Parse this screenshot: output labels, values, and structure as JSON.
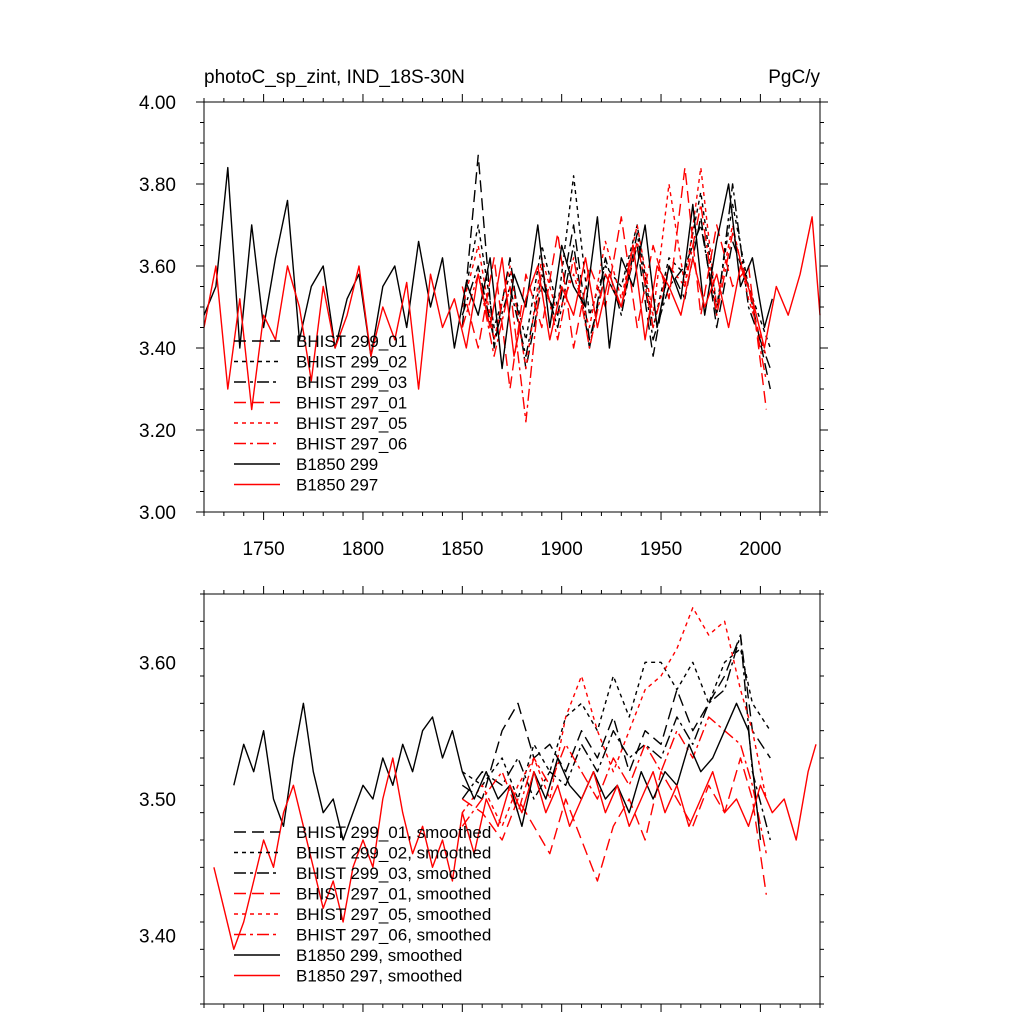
{
  "chart_data": [
    {
      "type": "line",
      "title": "photoC_sp_zint, IND_18S-30N",
      "units": "PgC/y",
      "xlim": [
        1720,
        2030
      ],
      "ylim": [
        3.0,
        4.0
      ],
      "xticks": [
        1750,
        1800,
        1850,
        1900,
        1950,
        2000
      ],
      "yticks": [
        3.0,
        3.2,
        3.4,
        3.6,
        3.8,
        4.0
      ],
      "ytick_labels": [
        "3.00",
        "3.20",
        "3.40",
        "3.60",
        "3.80",
        "4.00"
      ],
      "legend_position": "lower-left",
      "grid": false,
      "series": [
        {
          "name": "BHIST 299_01",
          "color": "#000000",
          "dash": "12,6",
          "x": [
            1850,
            1858,
            1866,
            1874,
            1882,
            1890,
            1898,
            1906,
            1914,
            1922,
            1930,
            1938,
            1946,
            1954,
            1962,
            1970,
            1978,
            1986,
            1994,
            2005
          ],
          "values": [
            3.45,
            3.87,
            3.4,
            3.62,
            3.35,
            3.55,
            3.48,
            3.7,
            3.42,
            3.58,
            3.5,
            3.65,
            3.38,
            3.6,
            3.52,
            3.72,
            3.45,
            3.66,
            3.55,
            3.3
          ]
        },
        {
          "name": "BHIST 299_02",
          "color": "#000000",
          "dash": "4,4",
          "x": [
            1850,
            1858,
            1866,
            1874,
            1882,
            1890,
            1898,
            1906,
            1914,
            1922,
            1930,
            1938,
            1946,
            1954,
            1962,
            1970,
            1978,
            1986,
            1994,
            2005
          ],
          "values": [
            3.5,
            3.7,
            3.45,
            3.58,
            3.42,
            3.65,
            3.5,
            3.82,
            3.48,
            3.6,
            3.55,
            3.7,
            3.45,
            3.62,
            3.58,
            3.78,
            3.5,
            3.75,
            3.55,
            3.4
          ]
        },
        {
          "name": "BHIST 299_03",
          "color": "#000000",
          "dash": "12,4,3,4",
          "x": [
            1850,
            1858,
            1866,
            1874,
            1882,
            1890,
            1898,
            1906,
            1914,
            1922,
            1930,
            1938,
            1946,
            1954,
            1962,
            1970,
            1978,
            1986,
            1994,
            2005
          ],
          "values": [
            3.48,
            3.6,
            3.42,
            3.55,
            3.38,
            3.58,
            3.45,
            3.65,
            3.4,
            3.62,
            3.48,
            3.68,
            3.42,
            3.55,
            3.6,
            3.7,
            3.48,
            3.8,
            3.5,
            3.35
          ]
        },
        {
          "name": "BHIST 297_01",
          "color": "#ff0000",
          "dash": "12,6",
          "x": [
            1850,
            1858,
            1866,
            1874,
            1882,
            1890,
            1898,
            1906,
            1914,
            1922,
            1930,
            1938,
            1946,
            1954,
            1962,
            1970,
            1978,
            1986,
            1994,
            2003
          ],
          "values": [
            3.55,
            3.4,
            3.62,
            3.3,
            3.58,
            3.45,
            3.68,
            3.4,
            3.6,
            3.5,
            3.72,
            3.45,
            3.65,
            3.52,
            3.84,
            3.48,
            3.7,
            3.55,
            3.6,
            3.25
          ]
        },
        {
          "name": "BHIST 297_05",
          "color": "#ff0000",
          "dash": "4,4",
          "x": [
            1850,
            1858,
            1866,
            1874,
            1882,
            1890,
            1898,
            1906,
            1914,
            1922,
            1930,
            1938,
            1946,
            1954,
            1962,
            1970,
            1978,
            1986,
            1994,
            2003
          ],
          "values": [
            3.5,
            3.65,
            3.42,
            3.6,
            3.35,
            3.62,
            3.48,
            3.58,
            3.45,
            3.66,
            3.52,
            3.7,
            3.48,
            3.8,
            3.55,
            3.84,
            3.5,
            3.7,
            3.52,
            3.38
          ]
        },
        {
          "name": "BHIST 297_06",
          "color": "#ff0000",
          "dash": "12,4,3,4",
          "x": [
            1850,
            1858,
            1866,
            1874,
            1882,
            1890,
            1898,
            1906,
            1914,
            1922,
            1930,
            1938,
            1946,
            1954,
            1962,
            1970,
            1978,
            1986,
            1994,
            2003
          ],
          "values": [
            3.45,
            3.58,
            3.38,
            3.55,
            3.22,
            3.6,
            3.42,
            3.62,
            3.4,
            3.58,
            3.5,
            3.66,
            3.45,
            3.6,
            3.55,
            3.75,
            3.48,
            3.68,
            3.55,
            3.32
          ]
        },
        {
          "name": "B1850 299",
          "color": "#000000",
          "dash": "",
          "x": [
            1720,
            1726,
            1732,
            1738,
            1744,
            1750,
            1756,
            1762,
            1768,
            1774,
            1780,
            1786,
            1792,
            1798,
            1804,
            1810,
            1816,
            1822,
            1828,
            1834,
            1840,
            1846,
            1852,
            1858,
            1864,
            1870,
            1876,
            1882,
            1888,
            1894,
            1900,
            1906,
            1912,
            1918,
            1924,
            1930,
            1936,
            1942,
            1948,
            1954,
            1960,
            1966,
            1972,
            1978,
            1984,
            1990,
            1996,
            2002,
            2006
          ],
          "values": [
            3.48,
            3.55,
            3.84,
            3.4,
            3.7,
            3.45,
            3.62,
            3.76,
            3.42,
            3.55,
            3.6,
            3.4,
            3.52,
            3.58,
            3.38,
            3.55,
            3.6,
            3.45,
            3.66,
            3.5,
            3.62,
            3.4,
            3.56,
            3.48,
            3.62,
            3.35,
            3.58,
            3.5,
            3.7,
            3.45,
            3.65,
            3.55,
            3.5,
            3.72,
            3.4,
            3.62,
            3.55,
            3.7,
            3.45,
            3.6,
            3.52,
            3.75,
            3.48,
            3.66,
            3.8,
            3.55,
            3.62,
            3.45,
            3.52
          ]
        },
        {
          "name": "B1850 297",
          "color": "#ff0000",
          "dash": "",
          "x": [
            1720,
            1726,
            1732,
            1738,
            1744,
            1750,
            1756,
            1762,
            1768,
            1774,
            1780,
            1786,
            1792,
            1798,
            1804,
            1810,
            1816,
            1822,
            1828,
            1834,
            1840,
            1846,
            1852,
            1858,
            1864,
            1870,
            1876,
            1882,
            1888,
            1894,
            1900,
            1906,
            1912,
            1918,
            1924,
            1930,
            1936,
            1942,
            1948,
            1954,
            1960,
            1966,
            1972,
            1978,
            1984,
            1990,
            1996,
            2002,
            2008,
            2014,
            2020,
            2026,
            2030
          ],
          "values": [
            3.45,
            3.6,
            3.3,
            3.52,
            3.25,
            3.48,
            3.42,
            3.6,
            3.5,
            3.32,
            3.55,
            3.4,
            3.48,
            3.6,
            3.38,
            3.5,
            3.42,
            3.56,
            3.3,
            3.58,
            3.45,
            3.52,
            3.4,
            3.58,
            3.45,
            3.62,
            3.38,
            3.52,
            3.6,
            3.42,
            3.55,
            3.48,
            3.62,
            3.45,
            3.58,
            3.5,
            3.65,
            3.42,
            3.6,
            3.55,
            3.48,
            3.62,
            3.5,
            3.58,
            3.45,
            3.6,
            3.52,
            3.4,
            3.55,
            3.48,
            3.58,
            3.72,
            3.48
          ]
        }
      ]
    },
    {
      "type": "line",
      "xlim": [
        1720,
        2030
      ],
      "ylim": [
        3.35,
        3.65
      ],
      "xticks": [
        1750,
        1800,
        1850,
        1900,
        1950,
        2000
      ],
      "yticks": [
        3.4,
        3.5,
        3.6
      ],
      "ytick_labels": [
        "3.40",
        "3.50",
        "3.60"
      ],
      "legend_position": "lower-left",
      "grid": false,
      "series": [
        {
          "name": "BHIST 299_01, smoothed",
          "color": "#000000",
          "dash": "12,6",
          "x": [
            1850,
            1860,
            1870,
            1878,
            1886,
            1894,
            1902,
            1910,
            1918,
            1926,
            1934,
            1942,
            1950,
            1958,
            1966,
            1974,
            1982,
            1990,
            1996,
            2005
          ],
          "values": [
            3.51,
            3.5,
            3.55,
            3.57,
            3.53,
            3.54,
            3.52,
            3.55,
            3.53,
            3.56,
            3.52,
            3.55,
            3.54,
            3.58,
            3.55,
            3.57,
            3.59,
            3.62,
            3.55,
            3.53
          ]
        },
        {
          "name": "BHIST 299_02, smoothed",
          "color": "#000000",
          "dash": "4,4",
          "x": [
            1850,
            1860,
            1870,
            1878,
            1886,
            1894,
            1902,
            1910,
            1918,
            1926,
            1934,
            1942,
            1950,
            1958,
            1966,
            1974,
            1982,
            1990,
            1996,
            2005
          ],
          "values": [
            3.52,
            3.51,
            3.53,
            3.5,
            3.54,
            3.52,
            3.56,
            3.57,
            3.55,
            3.59,
            3.56,
            3.6,
            3.6,
            3.58,
            3.6,
            3.57,
            3.6,
            3.61,
            3.57,
            3.55
          ]
        },
        {
          "name": "BHIST 299_03, smoothed",
          "color": "#000000",
          "dash": "12,4,3,4",
          "x": [
            1850,
            1860,
            1870,
            1878,
            1886,
            1894,
            1902,
            1910,
            1918,
            1926,
            1934,
            1942,
            1950,
            1958,
            1966,
            1974,
            1982,
            1990,
            1996,
            2005
          ],
          "values": [
            3.5,
            3.52,
            3.51,
            3.53,
            3.5,
            3.52,
            3.51,
            3.54,
            3.52,
            3.55,
            3.53,
            3.54,
            3.53,
            3.56,
            3.54,
            3.57,
            3.58,
            3.62,
            3.52,
            3.47
          ]
        },
        {
          "name": "BHIST 297_01, smoothed",
          "color": "#ff0000",
          "dash": "12,6",
          "x": [
            1850,
            1860,
            1870,
            1878,
            1886,
            1894,
            1902,
            1910,
            1918,
            1926,
            1934,
            1942,
            1950,
            1958,
            1966,
            1974,
            1982,
            1990,
            1996,
            2003
          ],
          "values": [
            3.5,
            3.49,
            3.47,
            3.5,
            3.48,
            3.46,
            3.5,
            3.47,
            3.44,
            3.48,
            3.5,
            3.47,
            3.52,
            3.5,
            3.48,
            3.51,
            3.49,
            3.53,
            3.5,
            3.43
          ]
        },
        {
          "name": "BHIST 297_05, smoothed",
          "color": "#ff0000",
          "dash": "4,4",
          "x": [
            1850,
            1860,
            1870,
            1878,
            1886,
            1894,
            1902,
            1910,
            1918,
            1926,
            1934,
            1942,
            1950,
            1958,
            1966,
            1974,
            1982,
            1990,
            1996,
            2003
          ],
          "values": [
            3.49,
            3.51,
            3.48,
            3.51,
            3.53,
            3.5,
            3.56,
            3.59,
            3.55,
            3.52,
            3.55,
            3.58,
            3.59,
            3.61,
            3.64,
            3.62,
            3.63,
            3.58,
            3.55,
            3.5
          ]
        },
        {
          "name": "BHIST 297_06, smoothed",
          "color": "#ff0000",
          "dash": "12,4,3,4",
          "x": [
            1850,
            1860,
            1870,
            1878,
            1886,
            1894,
            1902,
            1910,
            1918,
            1926,
            1934,
            1942,
            1950,
            1958,
            1966,
            1974,
            1982,
            1990,
            1996,
            2003
          ],
          "values": [
            3.48,
            3.5,
            3.52,
            3.49,
            3.53,
            3.51,
            3.54,
            3.52,
            3.5,
            3.53,
            3.51,
            3.54,
            3.52,
            3.55,
            3.53,
            3.56,
            3.55,
            3.54,
            3.51,
            3.46
          ]
        },
        {
          "name": "B1850 299, smoothed",
          "color": "#000000",
          "dash": "",
          "x": [
            1735,
            1740,
            1745,
            1750,
            1755,
            1760,
            1765,
            1770,
            1775,
            1780,
            1785,
            1790,
            1795,
            1800,
            1805,
            1810,
            1815,
            1820,
            1825,
            1830,
            1835,
            1840,
            1845,
            1850,
            1856,
            1862,
            1868,
            1874,
            1880,
            1886,
            1892,
            1898,
            1904,
            1910,
            1916,
            1922,
            1928,
            1934,
            1940,
            1946,
            1952,
            1958,
            1964,
            1970,
            1976,
            1982,
            1988,
            1994,
            2000
          ],
          "values": [
            3.51,
            3.54,
            3.52,
            3.55,
            3.5,
            3.48,
            3.53,
            3.57,
            3.52,
            3.49,
            3.5,
            3.47,
            3.49,
            3.51,
            3.5,
            3.53,
            3.51,
            3.54,
            3.52,
            3.55,
            3.56,
            3.53,
            3.55,
            3.52,
            3.5,
            3.52,
            3.5,
            3.51,
            3.48,
            3.52,
            3.5,
            3.53,
            3.51,
            3.5,
            3.52,
            3.5,
            3.51,
            3.49,
            3.52,
            3.5,
            3.52,
            3.51,
            3.54,
            3.52,
            3.53,
            3.55,
            3.57,
            3.55,
            3.47
          ]
        },
        {
          "name": "B1850 297, smoothed",
          "color": "#ff0000",
          "dash": "",
          "x": [
            1725,
            1730,
            1735,
            1740,
            1745,
            1750,
            1755,
            1760,
            1765,
            1770,
            1775,
            1780,
            1785,
            1790,
            1795,
            1800,
            1805,
            1810,
            1815,
            1820,
            1825,
            1830,
            1835,
            1840,
            1845,
            1850,
            1856,
            1862,
            1868,
            1874,
            1880,
            1886,
            1892,
            1898,
            1904,
            1910,
            1916,
            1922,
            1928,
            1934,
            1940,
            1946,
            1952,
            1958,
            1964,
            1970,
            1976,
            1982,
            1988,
            1994,
            2000,
            2006,
            2012,
            2018,
            2024,
            2028
          ],
          "values": [
            3.45,
            3.42,
            3.39,
            3.41,
            3.44,
            3.47,
            3.45,
            3.49,
            3.51,
            3.48,
            3.45,
            3.42,
            3.44,
            3.41,
            3.45,
            3.47,
            3.45,
            3.5,
            3.53,
            3.49,
            3.46,
            3.48,
            3.45,
            3.47,
            3.44,
            3.49,
            3.46,
            3.5,
            3.48,
            3.51,
            3.49,
            3.52,
            3.49,
            3.51,
            3.48,
            3.5,
            3.52,
            3.49,
            3.51,
            3.48,
            3.5,
            3.52,
            3.49,
            3.51,
            3.48,
            3.5,
            3.52,
            3.49,
            3.5,
            3.48,
            3.51,
            3.49,
            3.5,
            3.47,
            3.52,
            3.54
          ]
        }
      ]
    }
  ]
}
